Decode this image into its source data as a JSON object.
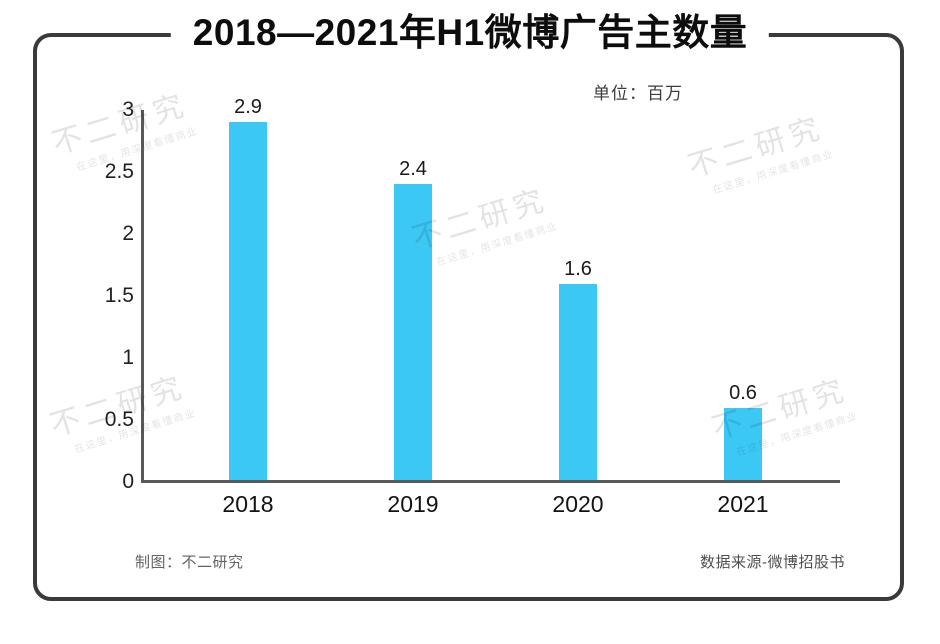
{
  "page": {
    "title": "2018—2021年H1微博广告主数量",
    "unit_label": "单位：百万",
    "footer_left": "制图：不二研究",
    "footer_right": "数据来源-微博招股书"
  },
  "watermark": {
    "line1": "不二研究",
    "line2": "在这里，用深度看懂商业"
  },
  "colors": {
    "bar": "#3bc8f5",
    "axis": "#58595b",
    "frame_border": "#3a3a3a",
    "title_text": "#0d0d0d",
    "footer_text": "#636363",
    "watermark": "rgba(0,0,0,0.11)"
  },
  "chart_data": {
    "type": "bar",
    "title": "2018—2021年H1微博广告主数量",
    "unit": "百万",
    "categories": [
      "2018",
      "2019",
      "2020",
      "2021"
    ],
    "values": [
      2.9,
      2.4,
      1.6,
      0.6
    ],
    "value_labels": [
      "2.9",
      "2.4",
      "1.6",
      "0.6"
    ],
    "xlabel": "",
    "ylabel": "",
    "ylim": [
      0,
      3
    ],
    "yticks": [
      3,
      2.5,
      2,
      1.5,
      1,
      0.5,
      0
    ],
    "grid": false,
    "legend": false,
    "bar_color": "#3bc8f5"
  }
}
